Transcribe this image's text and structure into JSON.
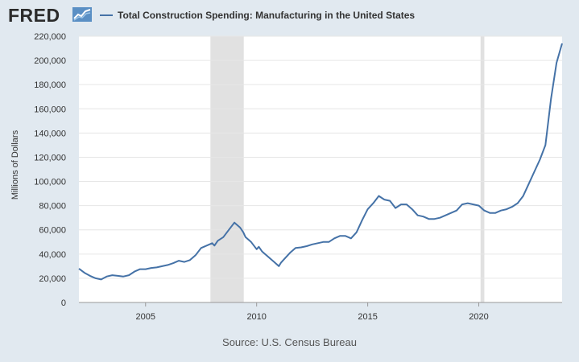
{
  "header": {
    "logo_text": "FRED",
    "series_title": "Total Construction Spending: Manufacturing in the United States"
  },
  "source": "Source: U.S. Census Bureau",
  "colors": {
    "line": "#4572a7",
    "recession": "#e1e1e1",
    "background": "#e1e9f0",
    "plot": "#ffffff",
    "grid": "#e6e6e6"
  },
  "chart_data": {
    "type": "line",
    "title": "Total Construction Spending: Manufacturing in the United States",
    "xlabel": "",
    "ylabel": "Millions of Dollars",
    "ylim": [
      0,
      220000
    ],
    "xlim": [
      2002.0,
      2023.75
    ],
    "yticks": [
      {
        "value": 0,
        "label": "0"
      },
      {
        "value": 20000,
        "label": "20,000"
      },
      {
        "value": 40000,
        "label": "40,000"
      },
      {
        "value": 60000,
        "label": "60,000"
      },
      {
        "value": 80000,
        "label": "80,000"
      },
      {
        "value": 100000,
        "label": "100,000"
      },
      {
        "value": 120000,
        "label": "120,000"
      },
      {
        "value": 140000,
        "label": "140,000"
      },
      {
        "value": 160000,
        "label": "160,000"
      },
      {
        "value": 180000,
        "label": "180,000"
      },
      {
        "value": 200000,
        "label": "200,000"
      },
      {
        "value": 220000,
        "label": "220,000"
      }
    ],
    "xticks": [
      {
        "value": 2005,
        "label": "2005"
      },
      {
        "value": 2010,
        "label": "2010"
      },
      {
        "value": 2015,
        "label": "2015"
      },
      {
        "value": 2020,
        "label": "2020"
      }
    ],
    "recessions": [
      {
        "start": 2007.92,
        "end": 2009.42
      },
      {
        "start": 2020.08,
        "end": 2020.25
      }
    ],
    "series": [
      {
        "name": "Total Construction Spending: Manufacturing in the United States",
        "x": [
          2002.0,
          2002.25,
          2002.5,
          2002.75,
          2003.0,
          2003.25,
          2003.5,
          2003.75,
          2004.0,
          2004.25,
          2004.5,
          2004.75,
          2005.0,
          2005.25,
          2005.5,
          2005.75,
          2006.0,
          2006.25,
          2006.5,
          2006.75,
          2007.0,
          2007.25,
          2007.5,
          2007.75,
          2008.0,
          2008.1,
          2008.25,
          2008.5,
          2008.75,
          2009.0,
          2009.25,
          2009.4,
          2009.5,
          2009.75,
          2010.0,
          2010.1,
          2010.25,
          2010.5,
          2010.75,
          2011.0,
          2011.1,
          2011.25,
          2011.5,
          2011.75,
          2012.0,
          2012.25,
          2012.5,
          2012.75,
          2013.0,
          2013.25,
          2013.5,
          2013.75,
          2014.0,
          2014.25,
          2014.5,
          2014.75,
          2015.0,
          2015.25,
          2015.5,
          2015.75,
          2016.0,
          2016.25,
          2016.5,
          2016.75,
          2017.0,
          2017.25,
          2017.5,
          2017.75,
          2018.0,
          2018.25,
          2018.5,
          2018.75,
          2019.0,
          2019.25,
          2019.5,
          2019.75,
          2020.0,
          2020.25,
          2020.5,
          2020.75,
          2021.0,
          2021.25,
          2021.5,
          2021.75,
          2022.0,
          2022.25,
          2022.5,
          2022.75,
          2023.0,
          2023.25,
          2023.5,
          2023.75
        ],
        "values": [
          28000,
          24500,
          22000,
          20000,
          19000,
          21500,
          22500,
          22000,
          21500,
          22500,
          25500,
          27500,
          27500,
          28500,
          29000,
          30000,
          31000,
          32500,
          34500,
          33500,
          35000,
          39000,
          45000,
          47000,
          49000,
          47000,
          51000,
          54000,
          60000,
          66000,
          62000,
          58000,
          54000,
          50000,
          44000,
          46000,
          42000,
          38000,
          34000,
          30000,
          33000,
          36000,
          41000,
          45000,
          45500,
          46500,
          48000,
          49000,
          50000,
          50000,
          53000,
          55000,
          55000,
          53000,
          58000,
          68000,
          77000,
          82000,
          88000,
          85000,
          84000,
          78000,
          81000,
          81000,
          77000,
          72000,
          71000,
          69000,
          69000,
          70000,
          72000,
          74000,
          76000,
          81000,
          82000,
          81000,
          80000,
          76000,
          74000,
          74000,
          76000,
          77000,
          79000,
          82000,
          88000,
          98000,
          108000,
          118000,
          130000,
          168000,
          198000,
          214000
        ]
      }
    ]
  }
}
